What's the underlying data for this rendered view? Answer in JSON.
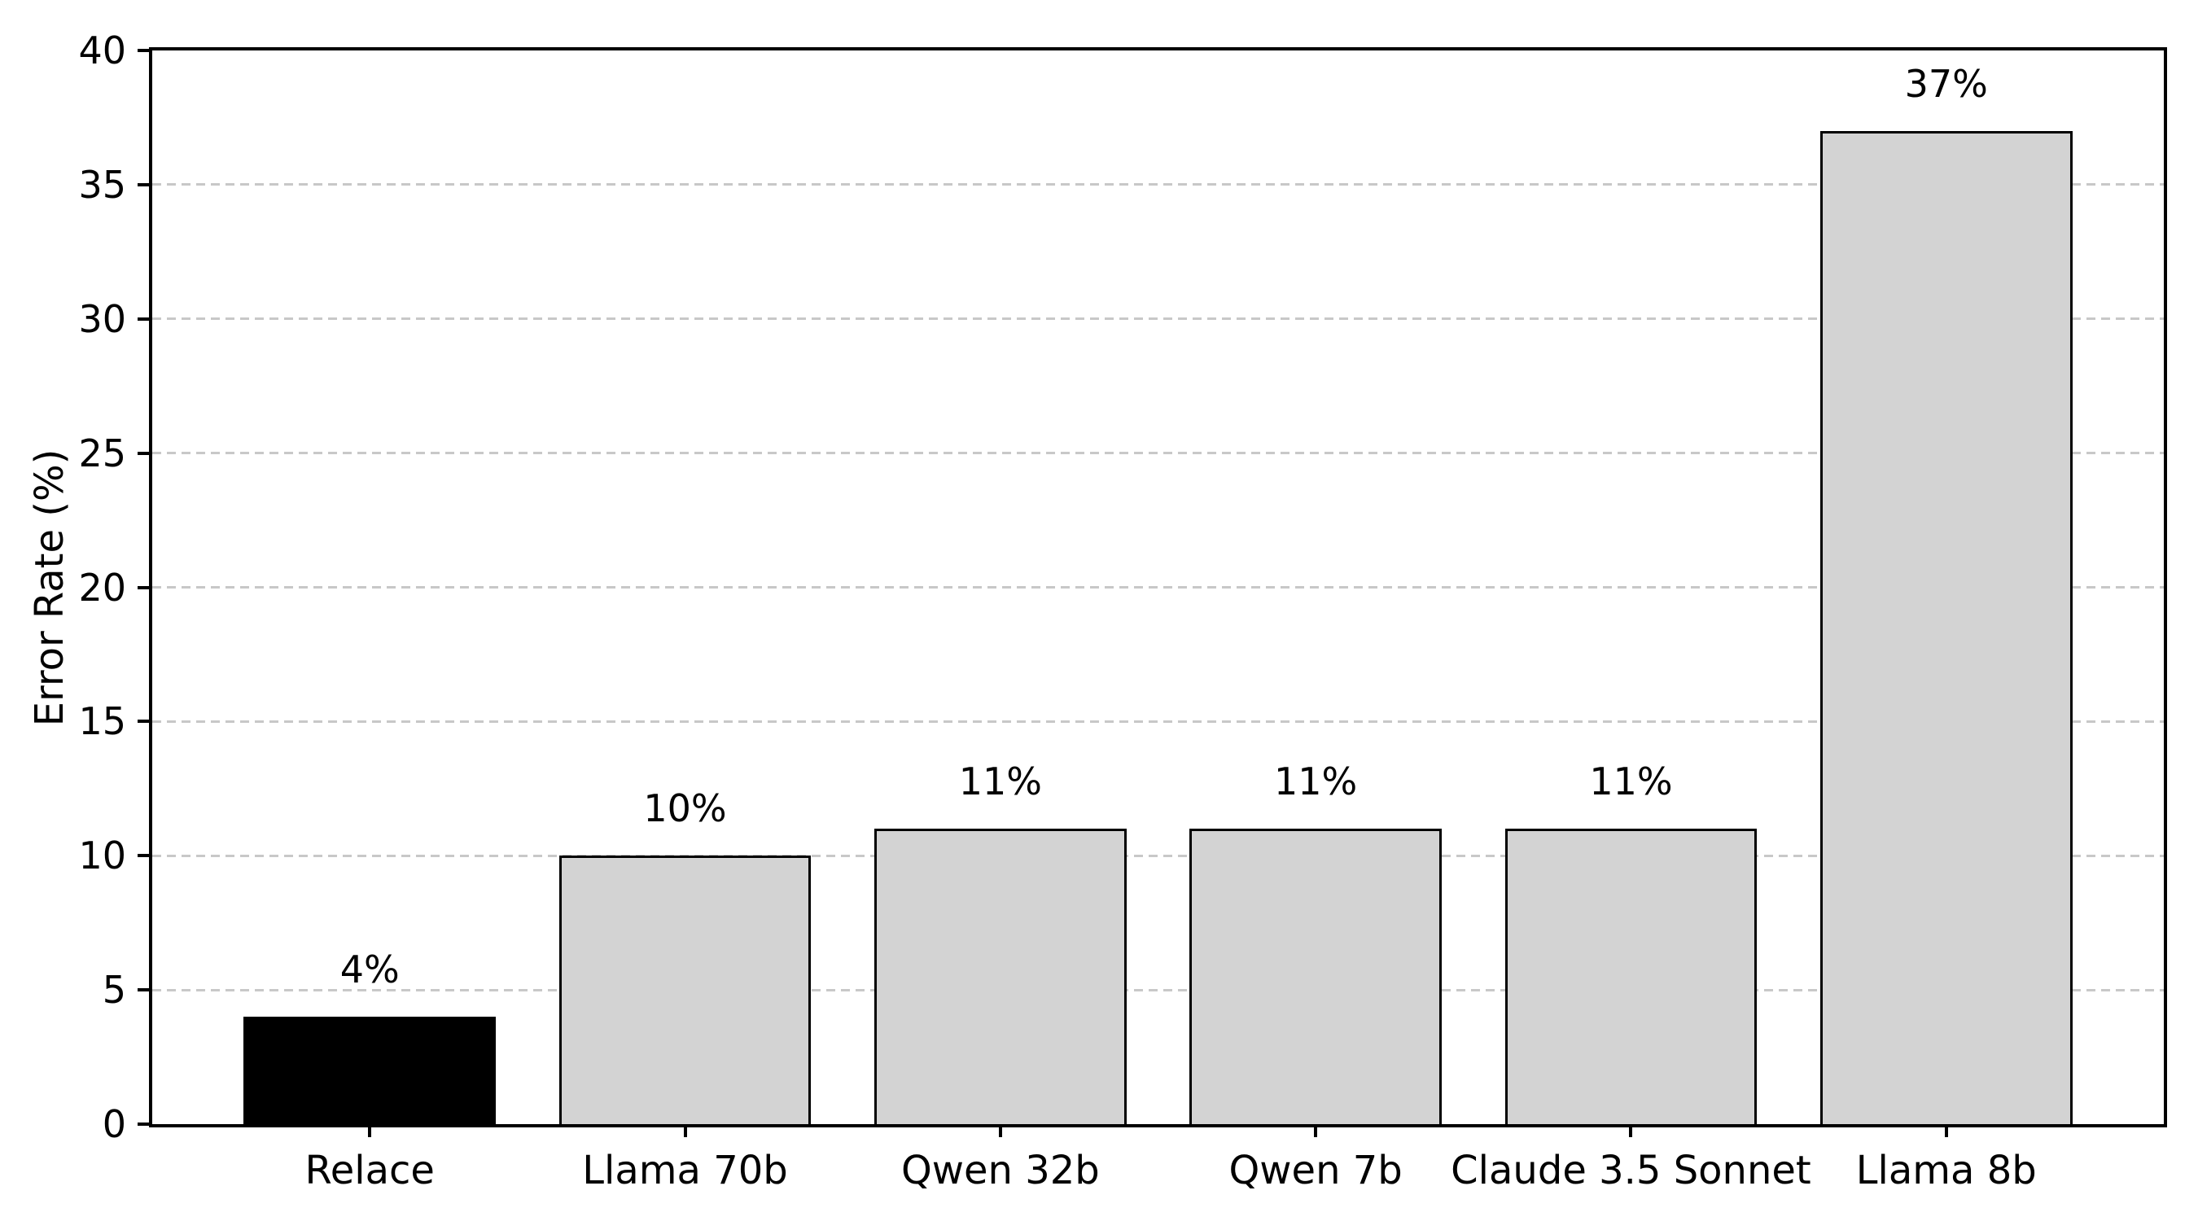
{
  "chart_data": {
    "type": "bar",
    "title": "",
    "xlabel": "",
    "ylabel": "Error Rate (%)",
    "categories": [
      "Relace",
      "Llama 70b",
      "Qwen 32b",
      "Qwen 7b",
      "Claude 3.5 Sonnet",
      "Llama 8b"
    ],
    "values": [
      4,
      10,
      11,
      11,
      11,
      37
    ],
    "value_labels": [
      "4%",
      "10%",
      "11%",
      "11%",
      "11%",
      "37%"
    ],
    "bar_colors": [
      "#000000",
      "#d3d3d3",
      "#d3d3d3",
      "#d3d3d3",
      "#d3d3d3",
      "#d3d3d3"
    ],
    "bar_edge_color": "#000000",
    "ylim": [
      0,
      40
    ],
    "yticks": [
      0,
      5,
      10,
      15,
      20,
      25,
      30,
      35,
      40
    ],
    "grid": "horizontal-dashed",
    "grid_color": "#c8c8c8",
    "legend": "none",
    "bar_width_fraction": 0.8,
    "background_color": "#ffffff",
    "axis_color": "#000000"
  }
}
